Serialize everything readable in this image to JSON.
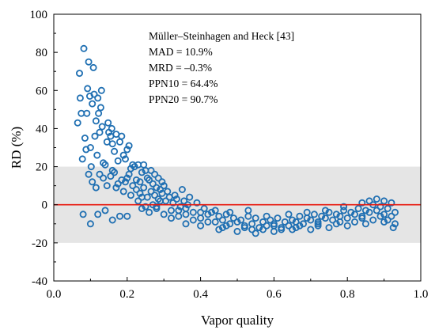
{
  "chart_data": {
    "type": "scatter",
    "xlabel": "Vapor quality",
    "ylabel": "RD (%)",
    "xlim": [
      0.0,
      1.0
    ],
    "ylim": [
      -40,
      100
    ],
    "xticks": [
      "0.0",
      "0.2",
      "0.4",
      "0.6",
      "0.8",
      "1.0"
    ],
    "yticks": [
      "-40",
      "-20",
      "0",
      "20",
      "40",
      "60",
      "80",
      "100"
    ],
    "band": {
      "y_from": -20,
      "y_to": 20,
      "color": "#e5e5e5"
    },
    "reference_line": {
      "y": 0,
      "color": "#e8160c"
    },
    "annotation": [
      "Müller–Steinhagen and Heck [43]",
      "MAD = 10.9%",
      "MRD = –0.3%",
      "PPN10 = 64.4%",
      "PPN20 = 90.7%"
    ],
    "marker_color": "#1f6fb2",
    "points": [
      [
        0.065,
        43
      ],
      [
        0.07,
        69
      ],
      [
        0.072,
        56
      ],
      [
        0.075,
        48
      ],
      [
        0.078,
        24
      ],
      [
        0.082,
        82
      ],
      [
        0.085,
        35
      ],
      [
        0.088,
        29
      ],
      [
        0.09,
        48
      ],
      [
        0.092,
        61
      ],
      [
        0.095,
        75
      ],
      [
        0.098,
        57
      ],
      [
        0.1,
        30
      ],
      [
        0.102,
        20
      ],
      [
        0.105,
        53
      ],
      [
        0.108,
        72
      ],
      [
        0.11,
        58
      ],
      [
        0.112,
        36
      ],
      [
        0.115,
        44
      ],
      [
        0.118,
        26
      ],
      [
        0.12,
        56
      ],
      [
        0.122,
        48
      ],
      [
        0.125,
        38
      ],
      [
        0.128,
        51
      ],
      [
        0.13,
        60
      ],
      [
        0.132,
        41
      ],
      [
        0.135,
        22
      ],
      [
        0.14,
        21
      ],
      [
        0.145,
        33
      ],
      [
        0.148,
        43
      ],
      [
        0.15,
        38
      ],
      [
        0.155,
        36
      ],
      [
        0.158,
        40
      ],
      [
        0.16,
        32
      ],
      [
        0.165,
        28
      ],
      [
        0.17,
        37
      ],
      [
        0.175,
        23
      ],
      [
        0.18,
        33
      ],
      [
        0.185,
        36
      ],
      [
        0.19,
        26
      ],
      [
        0.195,
        24
      ],
      [
        0.2,
        29
      ],
      [
        0.205,
        31
      ],
      [
        0.21,
        19
      ],
      [
        0.215,
        21
      ],
      [
        0.22,
        20
      ],
      [
        0.225,
        13
      ],
      [
        0.23,
        21
      ],
      [
        0.235,
        12
      ],
      [
        0.24,
        17
      ],
      [
        0.245,
        21
      ],
      [
        0.25,
        18
      ],
      [
        0.255,
        14
      ],
      [
        0.26,
        13
      ],
      [
        0.265,
        18
      ],
      [
        0.27,
        11
      ],
      [
        0.275,
        16
      ],
      [
        0.28,
        9
      ],
      [
        0.285,
        14
      ],
      [
        0.29,
        8
      ],
      [
        0.295,
        12
      ],
      [
        0.3,
        10
      ],
      [
        0.095,
        16
      ],
      [
        0.105,
        12
      ],
      [
        0.115,
        9
      ],
      [
        0.125,
        16
      ],
      [
        0.135,
        14
      ],
      [
        0.145,
        10
      ],
      [
        0.155,
        15
      ],
      [
        0.165,
        17
      ],
      [
        0.175,
        11
      ],
      [
        0.185,
        13
      ],
      [
        0.195,
        12
      ],
      [
        0.205,
        16
      ],
      [
        0.215,
        10
      ],
      [
        0.225,
        8
      ],
      [
        0.235,
        6
      ],
      [
        0.245,
        9
      ],
      [
        0.255,
        4
      ],
      [
        0.265,
        7
      ],
      [
        0.275,
        5
      ],
      [
        0.285,
        3
      ],
      [
        0.295,
        6
      ],
      [
        0.305,
        2
      ],
      [
        0.315,
        4
      ],
      [
        0.325,
        1
      ],
      [
        0.335,
        3
      ],
      [
        0.345,
        -1
      ],
      [
        0.355,
        2
      ],
      [
        0.365,
        0
      ],
      [
        0.08,
        -5
      ],
      [
        0.1,
        -10
      ],
      [
        0.12,
        -5
      ],
      [
        0.14,
        -3
      ],
      [
        0.16,
        -8
      ],
      [
        0.18,
        -6
      ],
      [
        0.2,
        -6
      ],
      [
        0.24,
        -2
      ],
      [
        0.26,
        -4
      ],
      [
        0.28,
        -1
      ],
      [
        0.3,
        -5
      ],
      [
        0.32,
        -3
      ],
      [
        0.34,
        -6
      ],
      [
        0.36,
        -2
      ],
      [
        0.38,
        -4
      ],
      [
        0.4,
        -7
      ],
      [
        0.42,
        -5
      ],
      [
        0.44,
        -9
      ],
      [
        0.46,
        -8
      ],
      [
        0.48,
        -10
      ],
      [
        0.5,
        -9
      ],
      [
        0.52,
        -11
      ],
      [
        0.54,
        -10
      ],
      [
        0.56,
        -12
      ],
      [
        0.58,
        -11
      ],
      [
        0.6,
        -10
      ],
      [
        0.62,
        -12
      ],
      [
        0.64,
        -11
      ],
      [
        0.66,
        -9
      ],
      [
        0.68,
        -10
      ],
      [
        0.7,
        -8
      ],
      [
        0.72,
        -9
      ],
      [
        0.74,
        -7
      ],
      [
        0.76,
        -8
      ],
      [
        0.78,
        -6
      ],
      [
        0.8,
        -7
      ],
      [
        0.82,
        -5
      ],
      [
        0.84,
        -6
      ],
      [
        0.86,
        -4
      ],
      [
        0.88,
        -3
      ],
      [
        0.9,
        -5
      ],
      [
        0.92,
        -6
      ],
      [
        0.93,
        -10
      ],
      [
        0.31,
        7
      ],
      [
        0.33,
        5
      ],
      [
        0.35,
        8
      ],
      [
        0.37,
        4
      ],
      [
        0.39,
        1
      ],
      [
        0.41,
        -2
      ],
      [
        0.43,
        -4
      ],
      [
        0.45,
        -6
      ],
      [
        0.47,
        -5
      ],
      [
        0.49,
        -7
      ],
      [
        0.51,
        -8
      ],
      [
        0.53,
        -6
      ],
      [
        0.55,
        -7
      ],
      [
        0.57,
        -9
      ],
      [
        0.59,
        -8
      ],
      [
        0.61,
        -7
      ],
      [
        0.63,
        -9
      ],
      [
        0.65,
        -8
      ],
      [
        0.67,
        -6
      ],
      [
        0.69,
        -7
      ],
      [
        0.71,
        -5
      ],
      [
        0.73,
        -6
      ],
      [
        0.75,
        -4
      ],
      [
        0.77,
        -5
      ],
      [
        0.79,
        -3
      ],
      [
        0.81,
        -4
      ],
      [
        0.83,
        -2
      ],
      [
        0.85,
        -3
      ],
      [
        0.87,
        0
      ],
      [
        0.89,
        -1
      ],
      [
        0.91,
        -2
      ],
      [
        0.4,
        -11
      ],
      [
        0.45,
        -13
      ],
      [
        0.5,
        -14
      ],
      [
        0.55,
        -15
      ],
      [
        0.6,
        -14
      ],
      [
        0.65,
        -13
      ],
      [
        0.7,
        -13
      ],
      [
        0.75,
        -12
      ],
      [
        0.8,
        -11
      ],
      [
        0.85,
        -10
      ],
      [
        0.9,
        -9
      ],
      [
        0.925,
        -12
      ],
      [
        0.42,
        -9
      ],
      [
        0.47,
        -11
      ],
      [
        0.52,
        -12
      ],
      [
        0.57,
        -13
      ],
      [
        0.62,
        -13
      ],
      [
        0.67,
        -11
      ],
      [
        0.72,
        -11
      ],
      [
        0.77,
        -10
      ],
      [
        0.82,
        -9
      ],
      [
        0.87,
        -8
      ],
      [
        0.91,
        -8
      ],
      [
        0.38,
        -8
      ],
      [
        0.36,
        -5
      ],
      [
        0.34,
        -3
      ],
      [
        0.44,
        -3
      ],
      [
        0.48,
        -4
      ],
      [
        0.53,
        -3
      ],
      [
        0.58,
        -6
      ],
      [
        0.64,
        -5
      ],
      [
        0.69,
        -4
      ],
      [
        0.74,
        -3
      ],
      [
        0.79,
        -1
      ],
      [
        0.84,
        1
      ],
      [
        0.86,
        2
      ],
      [
        0.88,
        3
      ],
      [
        0.9,
        2
      ],
      [
        0.92,
        1
      ],
      [
        0.29,
        2
      ],
      [
        0.27,
        0
      ],
      [
        0.25,
        -1
      ],
      [
        0.23,
        2
      ],
      [
        0.21,
        5
      ],
      [
        0.19,
        7
      ],
      [
        0.17,
        9
      ],
      [
        0.16,
        18
      ],
      [
        0.2,
        14
      ],
      [
        0.24,
        4
      ],
      [
        0.28,
        -2
      ],
      [
        0.32,
        -7
      ],
      [
        0.36,
        -10
      ],
      [
        0.4,
        -4
      ],
      [
        0.46,
        -12
      ],
      [
        0.54,
        -13
      ],
      [
        0.6,
        -11
      ],
      [
        0.66,
        -12
      ],
      [
        0.72,
        -10
      ],
      [
        0.78,
        -9
      ],
      [
        0.84,
        -7
      ],
      [
        0.89,
        -6
      ],
      [
        0.93,
        -4
      ]
    ]
  }
}
